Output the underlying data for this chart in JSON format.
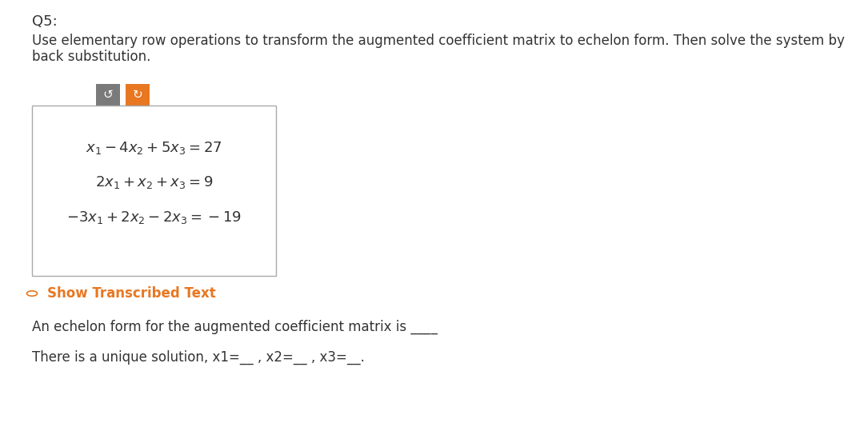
{
  "background_color": "#ffffff",
  "font_color": "#333333",
  "title": "Q5:",
  "title_fontsize": 13,
  "description_line1": "Use elementary row operations to transform the augmented coefficient matrix to echelon form. Then solve the system by",
  "description_line2": "back substitution.",
  "description_fontsize": 12,
  "eq1": "$x_1 - 4x_2 + 5x_3 = 27$",
  "eq2": "$2x_1 + x_2 + x_3 = 9$",
  "eq3": "$- 3x_1 + 2x_2 - 2x_3 = -19$",
  "eq_fontsize": 13,
  "show_transcribed_text": "Show Transcribed Text",
  "show_transcribed_color": "#e87722",
  "show_transcribed_fontsize": 12,
  "btn1_color": "#7a7a7a",
  "btn2_color": "#e87722",
  "echelon_text": "An echelon form for the augmented coefficient matrix is ____",
  "echelon_fontsize": 12,
  "solution_text": "There is a unique solution, x1=__ , x2=__ , x3=__.",
  "solution_fontsize": 12,
  "box_linecolor": "#aaaaaa"
}
